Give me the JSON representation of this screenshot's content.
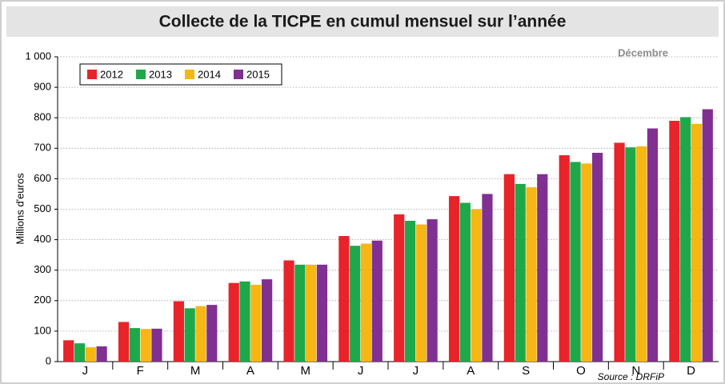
{
  "chart_data": {
    "type": "bar",
    "title": "Collecte de la TICPE en cumul mensuel sur l’année",
    "y_label": "Millions d'euros",
    "annotation": "Décembre",
    "source": "Source : DRFiP",
    "categories": [
      "J",
      "F",
      "M",
      "A",
      "M",
      "J",
      "J",
      "A",
      "S",
      "O",
      "N",
      "D"
    ],
    "series": [
      {
        "name": "2012",
        "color": "#e8232a",
        "values": [
          70,
          130,
          198,
          258,
          332,
          412,
          483,
          543,
          615,
          677,
          718,
          790
        ]
      },
      {
        "name": "2013",
        "color": "#1fa84a",
        "values": [
          60,
          110,
          175,
          263,
          318,
          380,
          462,
          521,
          583,
          655,
          703,
          802
        ]
      },
      {
        "name": "2014",
        "color": "#f6b614",
        "values": [
          47,
          107,
          182,
          252,
          318,
          387,
          450,
          500,
          572,
          650,
          706,
          780
        ]
      },
      {
        "name": "2015",
        "color": "#7f3090",
        "values": [
          50,
          108,
          186,
          270,
          318,
          397,
          467,
          550,
          615,
          685,
          765,
          828
        ]
      }
    ],
    "ylim": [
      0,
      1000
    ],
    "yticks": [
      0,
      100,
      200,
      300,
      400,
      500,
      600,
      700,
      800,
      900,
      {
        "value": 1000,
        "label": "1 000"
      }
    ],
    "grid": true,
    "legend": "top-left"
  }
}
